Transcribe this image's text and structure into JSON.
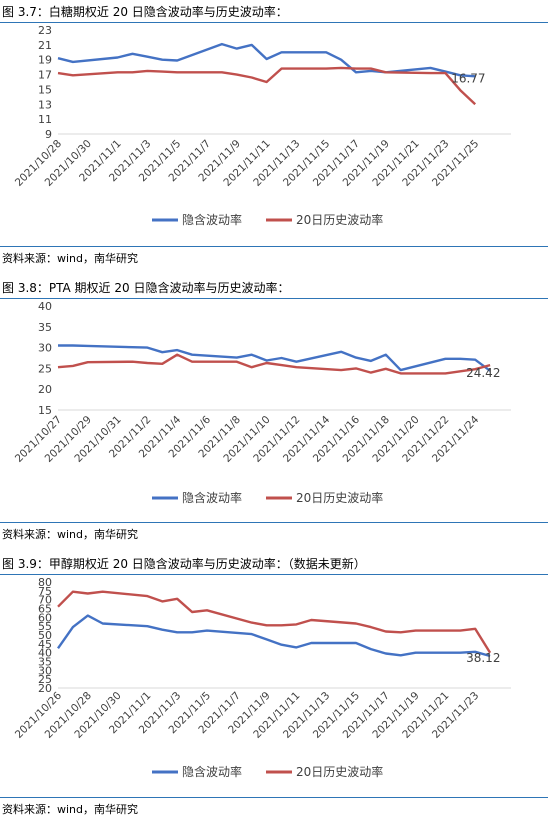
{
  "chart_data": [
    {
      "type": "line",
      "title": "图 3.7：白糖期权近 20 日隐含波动率与历史波动率：",
      "yticks": [
        9,
        11,
        13,
        15,
        17,
        19,
        21,
        23
      ],
      "ylim": [
        9,
        23
      ],
      "xlabels": [
        "2021/10/28",
        "2021/10/30",
        "2021/11/1",
        "2021/11/3",
        "2021/11/5",
        "2021/11/7",
        "2021/11/9",
        "2021/11/11",
        "2021/11/13",
        "2021/11/15",
        "2021/11/17",
        "2021/11/19",
        "2021/11/21",
        "2021/11/23",
        "2021/11/25"
      ],
      "x": [
        "2021/10/28",
        "2021/10/29",
        "2021/11/1",
        "2021/11/2",
        "2021/11/3",
        "2021/11/4",
        "2021/11/5",
        "2021/11/8",
        "2021/11/9",
        "2021/11/10",
        "2021/11/11",
        "2021/11/12",
        "2021/11/15",
        "2021/11/16",
        "2021/11/17",
        "2021/11/18",
        "2021/11/19",
        "2021/11/22",
        "2021/11/23",
        "2021/11/24",
        "2021/11/25"
      ],
      "series": [
        {
          "name": "隐含波动率",
          "color": "#4472C4",
          "values": [
            19.2,
            18.7,
            19.3,
            19.8,
            19.4,
            19.0,
            18.9,
            21.1,
            20.5,
            21.0,
            19.1,
            20.0,
            20.0,
            19.0,
            17.3,
            17.5,
            17.3,
            17.9,
            17.4,
            16.9,
            16.77
          ]
        },
        {
          "name": "20日历史波动率",
          "color": "#C0504D",
          "values": [
            17.2,
            16.9,
            17.3,
            17.3,
            17.5,
            17.4,
            17.3,
            17.3,
            17.0,
            16.6,
            16.0,
            17.8,
            17.8,
            17.9,
            17.8,
            17.8,
            17.3,
            17.2,
            17.2,
            14.9,
            13.0
          ]
        }
      ],
      "annotation": "16.77",
      "legend_position": "bottom",
      "source": "资料来源：wind，南华研究"
    },
    {
      "type": "line",
      "title": "图 3.8：PTA 期权近 20 日隐含波动率与历史波动率：",
      "yticks": [
        15,
        20,
        25,
        30,
        35,
        40
      ],
      "ylim": [
        15,
        40
      ],
      "xlabels": [
        "2021/10/27",
        "2021/10/29",
        "2021/10/31",
        "2021/11/2",
        "2021/11/4",
        "2021/11/6",
        "2021/11/8",
        "2021/11/10",
        "2021/11/12",
        "2021/11/14",
        "2021/11/16",
        "2021/11/18",
        "2021/11/20",
        "2021/11/22",
        "2021/11/24"
      ],
      "x": [
        "2021/10/27",
        "2021/10/28",
        "2021/10/29",
        "2021/11/1",
        "2021/11/2",
        "2021/11/3",
        "2021/11/4",
        "2021/11/5",
        "2021/11/8",
        "2021/11/9",
        "2021/11/10",
        "2021/11/11",
        "2021/11/12",
        "2021/11/15",
        "2021/11/16",
        "2021/11/17",
        "2021/11/18",
        "2021/11/19",
        "2021/11/22",
        "2021/11/23",
        "2021/11/24",
        "2021/11/25"
      ],
      "series": [
        {
          "name": "隐含波动率",
          "color": "#4472C4",
          "values": [
            30.5,
            30.5,
            30.4,
            30.1,
            30.0,
            28.9,
            29.4,
            28.3,
            27.6,
            28.3,
            26.9,
            27.5,
            26.6,
            29.0,
            27.6,
            26.8,
            28.3,
            24.6,
            27.3,
            27.3,
            27.1,
            24.42
          ]
        },
        {
          "name": "20日历史波动率",
          "color": "#C0504D",
          "values": [
            25.3,
            25.6,
            26.5,
            26.6,
            26.3,
            26.1,
            28.3,
            26.6,
            26.6,
            25.3,
            26.3,
            25.8,
            25.3,
            24.6,
            25.0,
            24.0,
            24.9,
            23.8,
            23.8,
            24.3,
            24.8,
            25.8
          ]
        }
      ],
      "annotation": "24.42",
      "legend_position": "bottom",
      "source": "资料来源：wind，南华研究"
    },
    {
      "type": "line",
      "title": "图 3.9：甲醇期权近 20 日隐含波动率与历史波动率：（数据未更新）",
      "yticks": [
        20,
        25,
        30,
        35,
        40,
        45,
        50,
        55,
        60,
        65,
        70,
        75,
        80
      ],
      "ylim": [
        20,
        80
      ],
      "xlabels": [
        "2021/10/26",
        "2021/10/28",
        "2021/10/30",
        "2021/11/1",
        "2021/11/3",
        "2021/11/5",
        "2021/11/7",
        "2021/11/9",
        "2021/11/11",
        "2021/11/13",
        "2021/11/15",
        "2021/11/17",
        "2021/11/19",
        "2021/11/21",
        "2021/11/23"
      ],
      "x": [
        "2021/10/26",
        "2021/10/27",
        "2021/10/28",
        "2021/10/29",
        "2021/11/1",
        "2021/11/2",
        "2021/11/3",
        "2021/11/4",
        "2021/11/5",
        "2021/11/8",
        "2021/11/9",
        "2021/11/10",
        "2021/11/11",
        "2021/11/12",
        "2021/11/15",
        "2021/11/16",
        "2021/11/17",
        "2021/11/18",
        "2021/11/19",
        "2021/11/22",
        "2021/11/23",
        "2021/11/24"
      ],
      "series": [
        {
          "name": "隐含波动率",
          "color": "#4472C4",
          "values": [
            42.5,
            54.5,
            61.0,
            56.5,
            55.0,
            53.0,
            51.5,
            51.5,
            52.5,
            50.5,
            47.5,
            44.5,
            43.0,
            45.5,
            45.5,
            42.0,
            39.5,
            38.5,
            40.0,
            40.0,
            40.5,
            38.12
          ]
        },
        {
          "name": "20日历史波动率",
          "color": "#C0504D",
          "values": [
            66.0,
            74.5,
            73.5,
            74.5,
            72.0,
            69.0,
            70.5,
            63.0,
            64.0,
            57.0,
            55.5,
            55.5,
            56.0,
            58.5,
            56.5,
            54.5,
            52.0,
            51.5,
            52.5,
            52.5,
            53.5,
            40.0
          ]
        }
      ],
      "annotation": "38.12",
      "legend_position": "bottom",
      "source": "资料来源：wind，南华研究"
    }
  ]
}
